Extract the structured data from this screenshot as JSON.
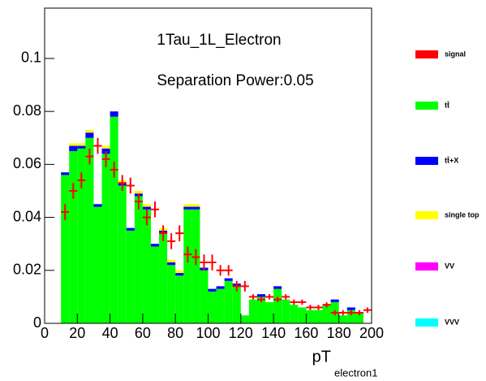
{
  "chart_data": {
    "type": "stacked_histogram",
    "title": "1Tau_1L_Electron",
    "annotation": "Separation Power:0.05",
    "x_label": "pT",
    "x_label_subscript": "electron1",
    "bins": [
      0,
      5,
      10,
      15,
      20,
      25,
      30,
      35,
      40,
      45,
      50,
      55,
      60,
      65,
      70,
      75,
      80,
      85,
      90,
      95,
      100,
      105,
      110,
      115,
      120,
      125,
      130,
      135,
      140,
      145,
      150,
      155,
      160,
      165,
      170,
      175,
      180,
      185,
      190,
      195,
      200
    ],
    "series": [
      {
        "name": "tt̄",
        "color": "#00ff00",
        "values": [
          0,
          0,
          0.056,
          0.065,
          0.066,
          0.07,
          0.044,
          0.064,
          0.078,
          0.052,
          0.035,
          0.048,
          0.043,
          0.029,
          0.034,
          0.022,
          0.018,
          0.043,
          0.043,
          0.02,
          0.012,
          0.013,
          0.016,
          0.014,
          0.003,
          0.009,
          0.01,
          0.008,
          0.013,
          0.009,
          0.007,
          0.006,
          0.005,
          0.005,
          0.007,
          0.008,
          0.003,
          0.005,
          0.004,
          0
        ]
      },
      {
        "name": "tt̄+X",
        "color": "#0000ff",
        "values": [
          0,
          0,
          0.001,
          0.002,
          0.001,
          0.002,
          0.001,
          0.002,
          0.002,
          0.001,
          0.001,
          0.001,
          0.001,
          0.001,
          0.001,
          0.001,
          0.001,
          0.001,
          0.001,
          0.001,
          0.001,
          0.001,
          0.001,
          0.001,
          0,
          0,
          0.001,
          0,
          0.001,
          0,
          0,
          0,
          0,
          0,
          0,
          0.001,
          0,
          0.001,
          0,
          0
        ]
      },
      {
        "name": "single top",
        "color": "#ffff00",
        "values": [
          0,
          0,
          0,
          0.001,
          0.001,
          0.001,
          0,
          0.001,
          0,
          0.001,
          0,
          0.001,
          0.001,
          0,
          0.001,
          0.001,
          0.001,
          0.001,
          0.001,
          0,
          0,
          0,
          0,
          0,
          0,
          0,
          0,
          0,
          0,
          0,
          0,
          0,
          0,
          0,
          0,
          0,
          0,
          0,
          0,
          0
        ]
      },
      {
        "name": "VV",
        "color": "#ff00ff",
        "values": [
          0,
          0,
          0,
          0,
          0,
          0,
          0,
          0,
          0,
          0,
          0,
          0,
          0,
          0,
          0,
          0,
          0,
          0,
          0,
          0,
          0,
          0,
          0,
          0,
          0,
          0,
          0,
          0,
          0,
          0,
          0,
          0,
          0,
          0,
          0,
          0,
          0,
          0,
          0,
          0
        ]
      },
      {
        "name": "VVV",
        "color": "#00ffff",
        "values": [
          0,
          0,
          0,
          0,
          0,
          0,
          0,
          0,
          0,
          0,
          0,
          0,
          0,
          0,
          0,
          0,
          0,
          0,
          0,
          0,
          0,
          0,
          0,
          0,
          0,
          0,
          0,
          0,
          0,
          0,
          0,
          0,
          0,
          0,
          0,
          0,
          0,
          0,
          0,
          0
        ]
      }
    ],
    "signal": {
      "name": "signal",
      "color": "#ff0000",
      "values": [
        null,
        null,
        0.042,
        0.05,
        0.054,
        0.063,
        0.067,
        0.062,
        0.058,
        0.053,
        0.052,
        0.046,
        0.04,
        0.043,
        0.034,
        0.031,
        0.034,
        0.026,
        0.025,
        0.023,
        0.023,
        0.02,
        0.02,
        0.014,
        0.014,
        0.01,
        0.009,
        0.01,
        0.009,
        0.01,
        0.008,
        0.008,
        0.006,
        0.006,
        0.007,
        0.004,
        0.004,
        0.004,
        0.004,
        0.005
      ],
      "errors": [
        null,
        null,
        0.003,
        0.003,
        0.003,
        0.003,
        0.003,
        0.003,
        0.003,
        0.003,
        0.003,
        0.003,
        0.003,
        0.003,
        0.003,
        0.003,
        0.003,
        0.003,
        0.003,
        0.003,
        0.003,
        0.002,
        0.002,
        0.002,
        0.002,
        0.001,
        0.001,
        0.001,
        0.001,
        0.001,
        0.001,
        0.001,
        0.001,
        0.001,
        0.001,
        0.001,
        0.001,
        0.001,
        0.001,
        0.001
      ]
    },
    "xlim": [
      0,
      200
    ],
    "ylim": [
      0,
      0.119
    ],
    "xticks": [
      0,
      20,
      40,
      60,
      80,
      100,
      120,
      140,
      160,
      180,
      200
    ],
    "yticks": [
      0,
      0.02,
      0.04,
      0.06,
      0.08,
      0.1
    ]
  }
}
